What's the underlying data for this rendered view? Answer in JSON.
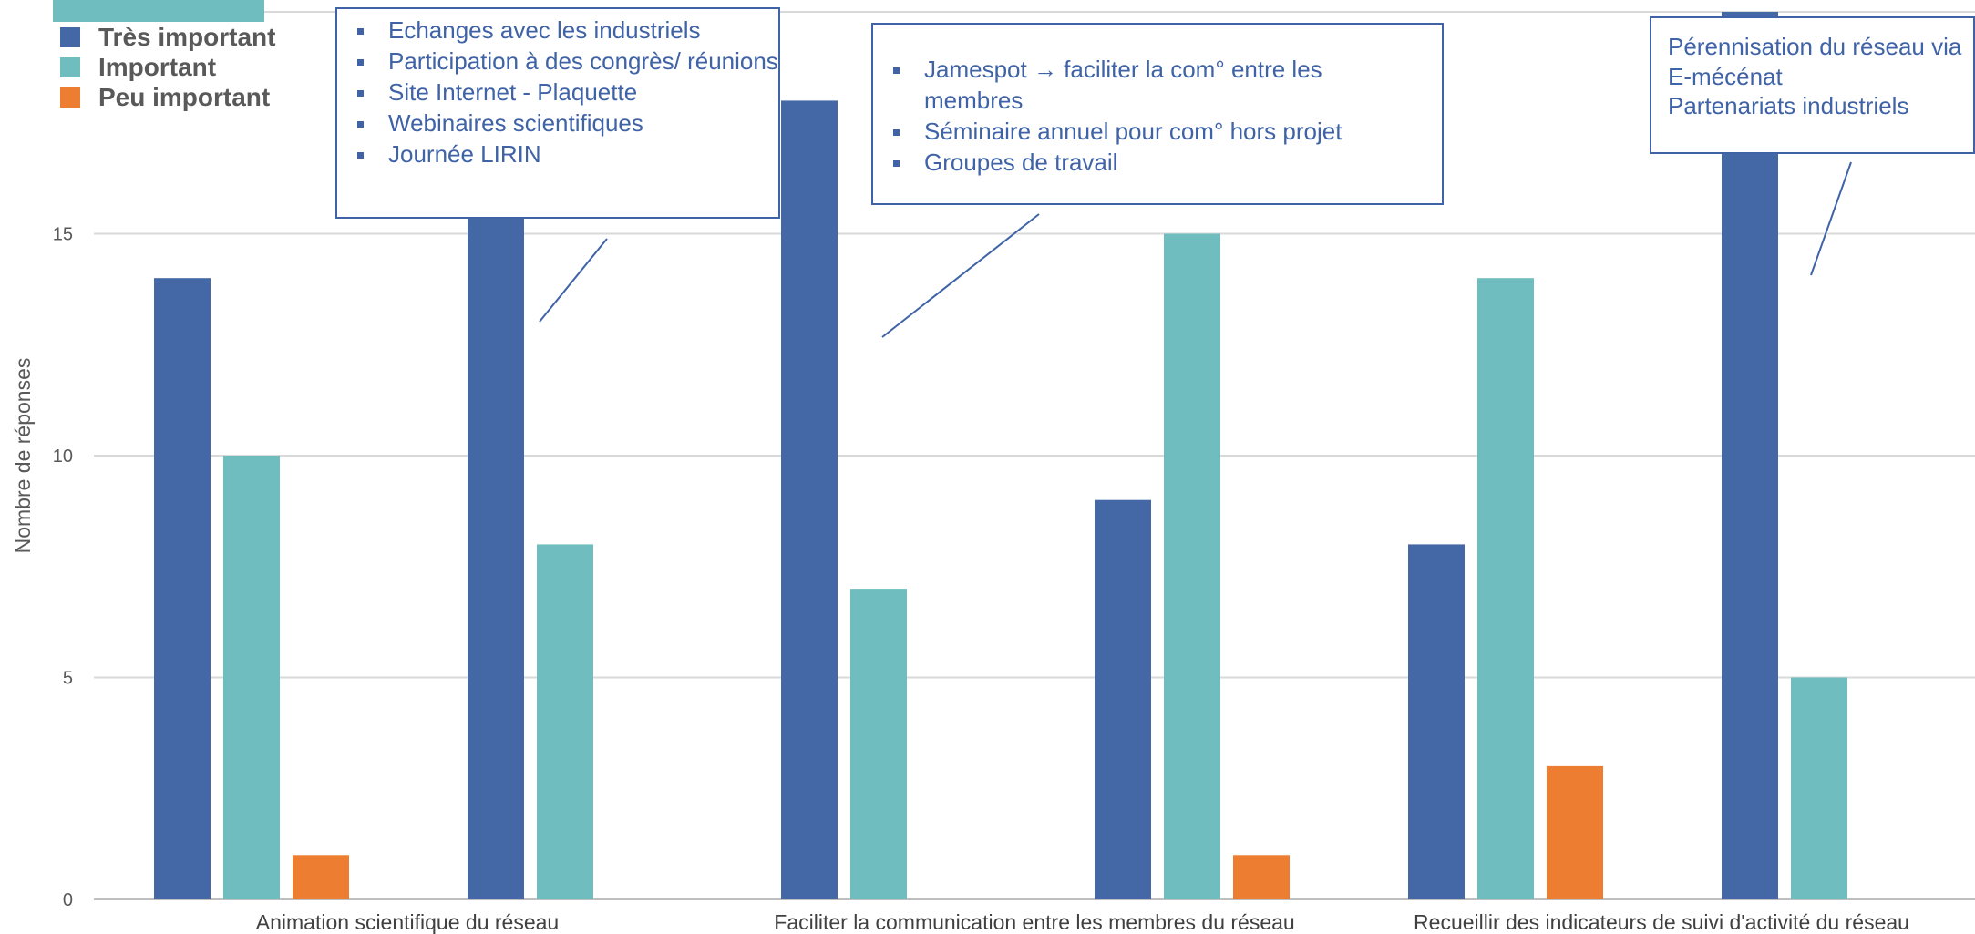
{
  "chart_data": {
    "type": "bar",
    "categories": [
      "Animation scientifique du réseau",
      "",
      "Faciliter la communication entre les membres du réseau",
      "",
      "Recueillir des indicateurs de suivi d'activité du réseau",
      ""
    ],
    "series": [
      {
        "name": "Très important",
        "color": "#4467a6",
        "values": [
          14,
          17,
          18,
          9,
          8,
          20
        ]
      },
      {
        "name": "Important",
        "color": "#6fbdbf",
        "values": [
          10,
          8,
          7,
          15,
          14,
          5
        ]
      },
      {
        "name": "Peu important",
        "color": "#ed7d31",
        "values": [
          1,
          0,
          0,
          1,
          3,
          0
        ]
      }
    ],
    "ylabel": "Nombre de réponses",
    "yticks": [
      0,
      5,
      10,
      15
    ],
    "ylim": [
      0,
      20
    ],
    "grid": true,
    "legend_position": "top-left"
  },
  "callouts": [
    {
      "items": [
        "Echanges avec les industriels",
        "Participation à des congrès/ réunions",
        "Site Internet - Plaquette",
        "Webinaires scientifiques",
        "Journée LIRIN"
      ]
    },
    {
      "items": [
        "Jamespot →    faciliter la com° entre les membres",
        "Séminaire annuel pour com° hors projet",
        "Groupes de travail"
      ]
    },
    {
      "lines": [
        "Pérennisation du réseau via",
        "E-mécénat",
        "Partenariats industriels"
      ]
    }
  ]
}
